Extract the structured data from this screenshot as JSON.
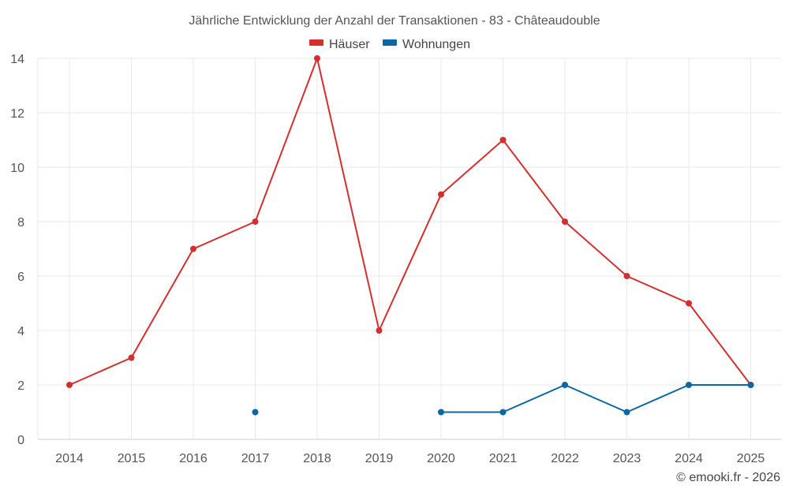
{
  "chart_data": {
    "type": "line",
    "title": "Jährliche Entwicklung der Anzahl der Transaktionen - 83 - Châteaudouble",
    "xlabel": "",
    "ylabel": "",
    "categories": [
      "2014",
      "2015",
      "2016",
      "2017",
      "2018",
      "2019",
      "2020",
      "2021",
      "2022",
      "2023",
      "2024",
      "2025"
    ],
    "ylim": [
      0,
      14
    ],
    "yticks": [
      0,
      2,
      4,
      6,
      8,
      10,
      12,
      14
    ],
    "grid": true,
    "legend_position": "top-center",
    "series": [
      {
        "name": "Häuser",
        "color": "#d32f2f",
        "values": [
          2,
          3,
          7,
          8,
          14,
          4,
          9,
          11,
          8,
          6,
          5,
          2
        ]
      },
      {
        "name": "Wohnungen",
        "color": "#0b67a3",
        "values": [
          null,
          null,
          null,
          1,
          null,
          null,
          1,
          1,
          2,
          1,
          2,
          2
        ]
      }
    ]
  },
  "credit": "© emooki.fr - 2026"
}
